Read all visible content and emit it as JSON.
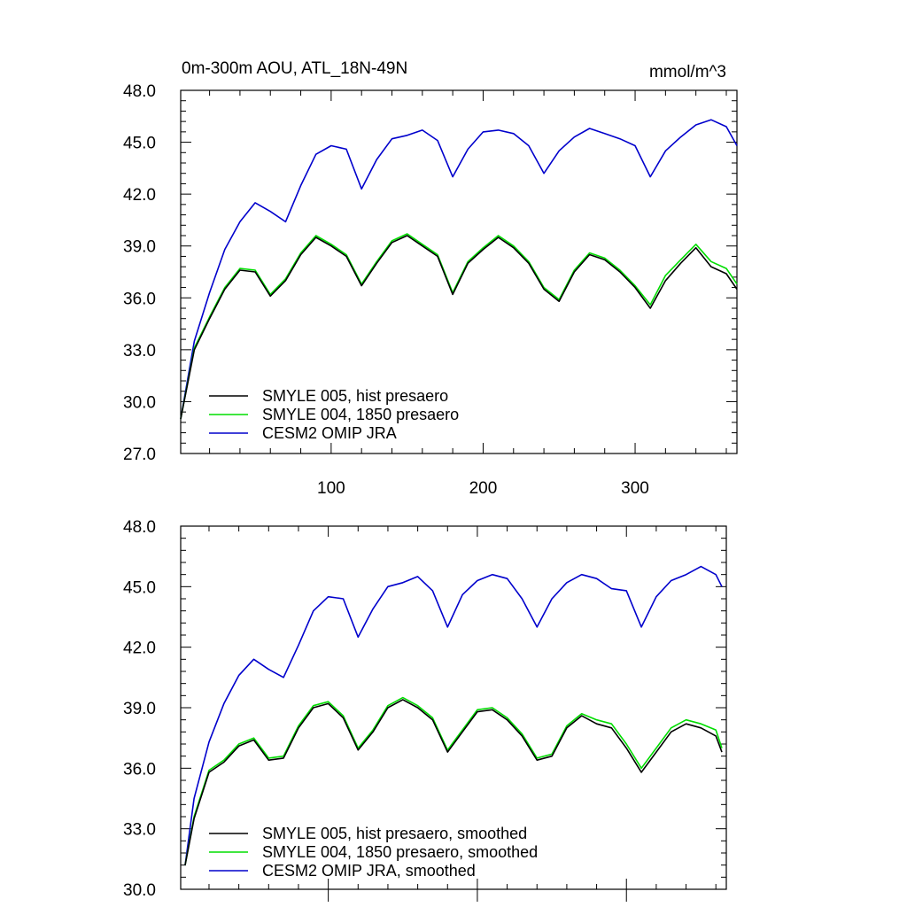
{
  "chart_data": [
    {
      "type": "line",
      "title": "0m-300m AOU, ATL_18N-49N",
      "units": "mmol/m^3",
      "xlim": [
        1,
        367
      ],
      "ylim": [
        27.0,
        48.0
      ],
      "xticks": [
        "100",
        "200",
        "300"
      ],
      "yticks": [
        "48.0",
        "45.0",
        "42.0",
        "39.0",
        "36.0",
        "33.0",
        "30.0",
        "27.0"
      ],
      "legend_position": "bottom-left",
      "series": [
        {
          "name": "SMYLE 005, hist presaero",
          "color": "#000000",
          "x": [
            1,
            10,
            20,
            30,
            40,
            50,
            60,
            70,
            80,
            90,
            100,
            110,
            120,
            130,
            140,
            150,
            160,
            170,
            180,
            190,
            200,
            210,
            220,
            230,
            240,
            250,
            260,
            270,
            280,
            290,
            300,
            310,
            320,
            330,
            340,
            350,
            360,
            367
          ],
          "y": [
            29.0,
            33.0,
            34.8,
            36.5,
            37.6,
            37.5,
            36.1,
            37.0,
            38.5,
            39.5,
            39.0,
            38.4,
            36.7,
            38.0,
            39.2,
            39.6,
            39.0,
            38.4,
            36.2,
            38.0,
            38.8,
            39.5,
            38.9,
            38.0,
            36.5,
            35.8,
            37.5,
            38.5,
            38.2,
            37.5,
            36.6,
            35.4,
            37.0,
            38.0,
            38.9,
            37.8,
            37.4,
            36.5
          ]
        },
        {
          "name": "SMYLE 004, 1850 presaero",
          "color": "#00dd00",
          "x": [
            1,
            10,
            20,
            30,
            40,
            50,
            60,
            70,
            80,
            90,
            100,
            110,
            120,
            130,
            140,
            150,
            160,
            170,
            180,
            190,
            200,
            210,
            220,
            230,
            240,
            250,
            260,
            270,
            280,
            290,
            300,
            310,
            320,
            330,
            340,
            350,
            360,
            367
          ],
          "y": [
            29.0,
            33.1,
            34.9,
            36.6,
            37.7,
            37.6,
            36.2,
            37.1,
            38.6,
            39.6,
            39.1,
            38.5,
            36.8,
            38.1,
            39.3,
            39.7,
            39.1,
            38.5,
            36.3,
            38.1,
            38.9,
            39.6,
            39.0,
            38.1,
            36.6,
            35.9,
            37.6,
            38.6,
            38.3,
            37.6,
            36.7,
            35.6,
            37.3,
            38.2,
            39.1,
            38.1,
            37.7,
            36.8
          ]
        },
        {
          "name": "CESM2 OMIP JRA",
          "color": "#0000cc",
          "x": [
            1,
            10,
            20,
            30,
            40,
            50,
            60,
            70,
            80,
            90,
            100,
            110,
            120,
            130,
            140,
            150,
            160,
            170,
            180,
            190,
            200,
            210,
            220,
            230,
            240,
            250,
            260,
            270,
            280,
            290,
            300,
            310,
            320,
            330,
            340,
            350,
            360,
            367
          ],
          "y": [
            29.0,
            33.5,
            36.3,
            38.8,
            40.4,
            41.5,
            41.0,
            40.4,
            42.5,
            44.3,
            44.8,
            44.6,
            42.3,
            44.0,
            45.2,
            45.4,
            45.7,
            45.1,
            43.0,
            44.6,
            45.6,
            45.7,
            45.5,
            44.8,
            43.2,
            44.5,
            45.3,
            45.8,
            45.5,
            45.2,
            44.8,
            43.0,
            44.5,
            45.3,
            46.0,
            46.3,
            45.9,
            44.8
          ]
        }
      ]
    },
    {
      "type": "line",
      "title": "",
      "xlim": [
        1,
        367
      ],
      "ylim": [
        30.0,
        48.0
      ],
      "xticks": [],
      "yticks": [
        "48.0",
        "45.0",
        "42.0",
        "39.0",
        "36.0",
        "33.0",
        "30.0"
      ],
      "legend_position": "bottom-left",
      "series": [
        {
          "name": "SMYLE 005, hist presaero, smoothed",
          "color": "#000000",
          "x": [
            4,
            10,
            20,
            30,
            40,
            50,
            60,
            70,
            80,
            90,
            100,
            110,
            120,
            130,
            140,
            150,
            160,
            170,
            180,
            190,
            200,
            210,
            220,
            230,
            240,
            250,
            260,
            270,
            280,
            290,
            300,
            310,
            320,
            330,
            340,
            350,
            360,
            364
          ],
          "y": [
            31.2,
            33.5,
            35.8,
            36.3,
            37.1,
            37.4,
            36.4,
            36.5,
            38.0,
            39.0,
            39.2,
            38.5,
            36.9,
            37.8,
            39.0,
            39.4,
            39.0,
            38.4,
            36.8,
            37.8,
            38.8,
            38.9,
            38.4,
            37.6,
            36.4,
            36.6,
            38.0,
            38.6,
            38.2,
            38.0,
            37.0,
            35.8,
            36.8,
            37.8,
            38.2,
            38.0,
            37.6,
            36.8
          ]
        },
        {
          "name": "SMYLE 004, 1850 presaero, smoothed",
          "color": "#00dd00",
          "x": [
            4,
            10,
            20,
            30,
            40,
            50,
            60,
            70,
            80,
            90,
            100,
            110,
            120,
            130,
            140,
            150,
            160,
            170,
            180,
            190,
            200,
            210,
            220,
            230,
            240,
            250,
            260,
            270,
            280,
            290,
            300,
            310,
            320,
            330,
            340,
            350,
            360,
            364
          ],
          "y": [
            31.2,
            33.6,
            35.9,
            36.4,
            37.2,
            37.5,
            36.5,
            36.6,
            38.1,
            39.1,
            39.3,
            38.6,
            37.0,
            37.9,
            39.1,
            39.5,
            39.1,
            38.5,
            36.9,
            37.9,
            38.9,
            39.0,
            38.5,
            37.7,
            36.5,
            36.7,
            38.1,
            38.7,
            38.4,
            38.2,
            37.2,
            36.0,
            37.0,
            38.0,
            38.4,
            38.2,
            37.9,
            37.0
          ]
        },
        {
          "name": "CESM2 OMIP JRA, smoothed",
          "color": "#0000cc",
          "x": [
            4,
            10,
            20,
            30,
            40,
            50,
            60,
            70,
            80,
            90,
            100,
            110,
            120,
            130,
            140,
            150,
            160,
            170,
            180,
            190,
            200,
            210,
            220,
            230,
            240,
            250,
            260,
            270,
            280,
            290,
            300,
            310,
            320,
            330,
            340,
            350,
            360,
            364
          ],
          "y": [
            31.2,
            34.5,
            37.3,
            39.2,
            40.6,
            41.4,
            40.9,
            40.5,
            42.1,
            43.8,
            44.5,
            44.4,
            42.5,
            43.9,
            45.0,
            45.2,
            45.5,
            44.8,
            43.0,
            44.6,
            45.3,
            45.6,
            45.4,
            44.4,
            43.0,
            44.4,
            45.2,
            45.6,
            45.4,
            44.9,
            44.8,
            43.0,
            44.5,
            45.3,
            45.6,
            46.0,
            45.6,
            45.0
          ]
        }
      ]
    }
  ]
}
